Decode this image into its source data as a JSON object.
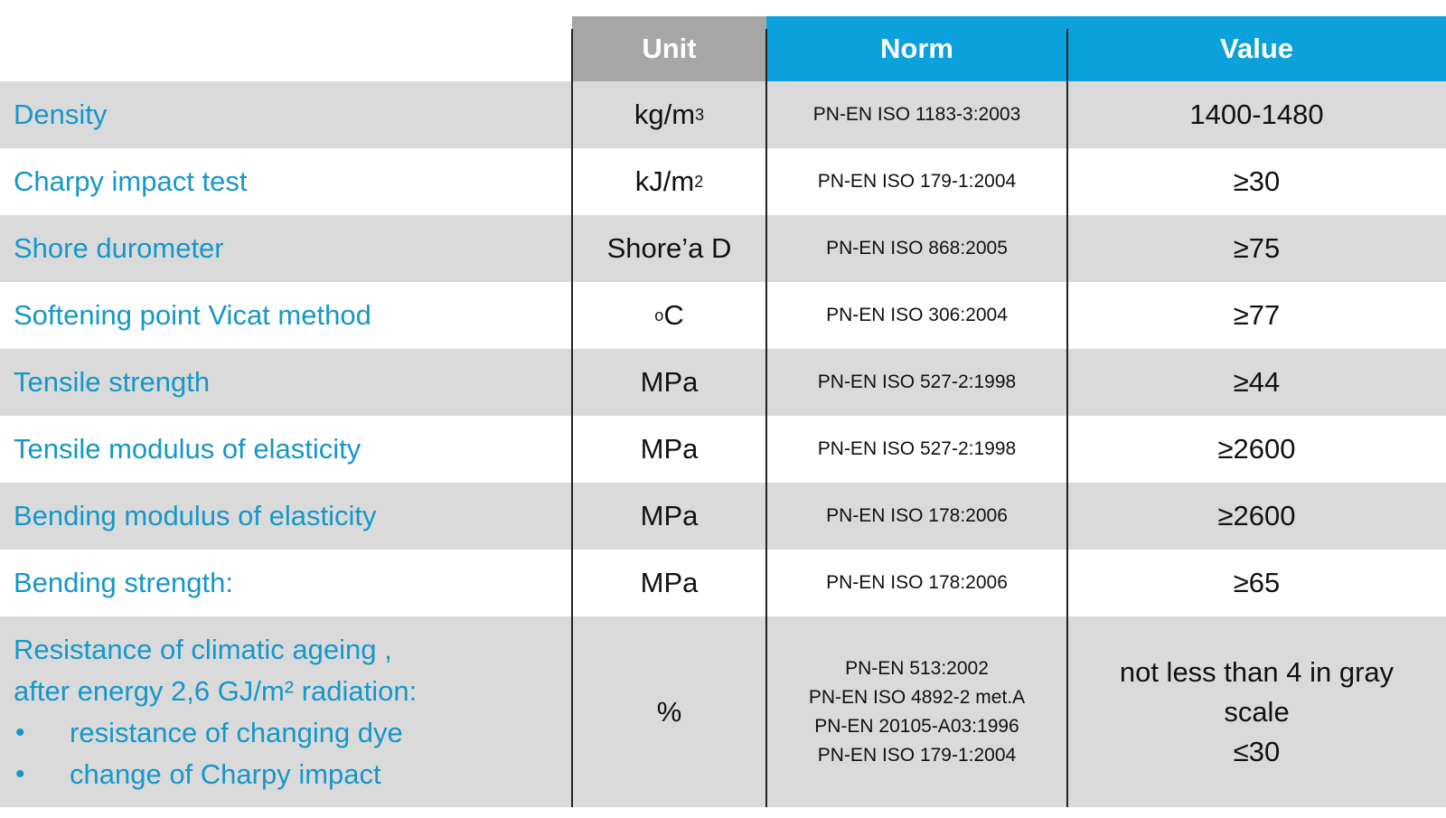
{
  "header": {
    "unit": "Unit",
    "norm": "Norm",
    "value": "Value"
  },
  "rows": [
    {
      "label": "Density",
      "unit": "kg/m",
      "unit_sup": "3",
      "norm": "PN-EN ISO 1183-3:2003",
      "value": "1400-1480"
    },
    {
      "label": "Charpy impact test",
      "unit": "kJ/m",
      "unit_sup": "2",
      "norm": "PN-EN ISO 179-1:2004",
      "value": "≥30"
    },
    {
      "label": "Shore durometer",
      "unit": "Shore’a D",
      "norm": "PN-EN ISO 868:2005",
      "value": "≥75"
    },
    {
      "label": "Softening point Vicat method",
      "unit_pre_sup": "o",
      "unit": "C",
      "norm": "PN-EN ISO 306:2004",
      "value": "≥77"
    },
    {
      "label": "Tensile strength",
      "unit": "MPa",
      "norm": "PN-EN ISO 527-2:1998",
      "value": "≥44"
    },
    {
      "label": "Tensile modulus of elasticity",
      "unit": "MPa",
      "norm": "PN-EN ISO 527-2:1998",
      "value": "≥2600"
    },
    {
      "label": "Bending modulus of elasticity",
      "unit": "MPa",
      "norm": "PN-EN ISO 178:2006",
      "value": "≥2600"
    },
    {
      "label": "Bending strength:",
      "unit": "MPa",
      "norm": "PN-EN ISO 178:2006",
      "value": "≥65"
    }
  ],
  "last_row": {
    "label_lines": [
      "Resistance of climatic ageing ,",
      "after energy 2,6 GJ/m² radiation:"
    ],
    "bullets": [
      "resistance of changing dye",
      "change of Charpy impact"
    ],
    "bullet_glyph": "•",
    "unit": "%",
    "norm_lines": [
      "PN-EN 513:2002",
      "PN-EN ISO 4892-2 met.A",
      "PN-EN 20105-A03:1996",
      "PN-EN ISO 179-1:2004"
    ],
    "value_lines": [
      "not less than 4 in gray",
      "scale",
      "≤30"
    ]
  },
  "colors": {
    "header_unit_bg": "#a6a6a6",
    "header_blue_bg": "#0ca0dc",
    "row_gray": "#dadada",
    "label_text": "#1597c9"
  }
}
